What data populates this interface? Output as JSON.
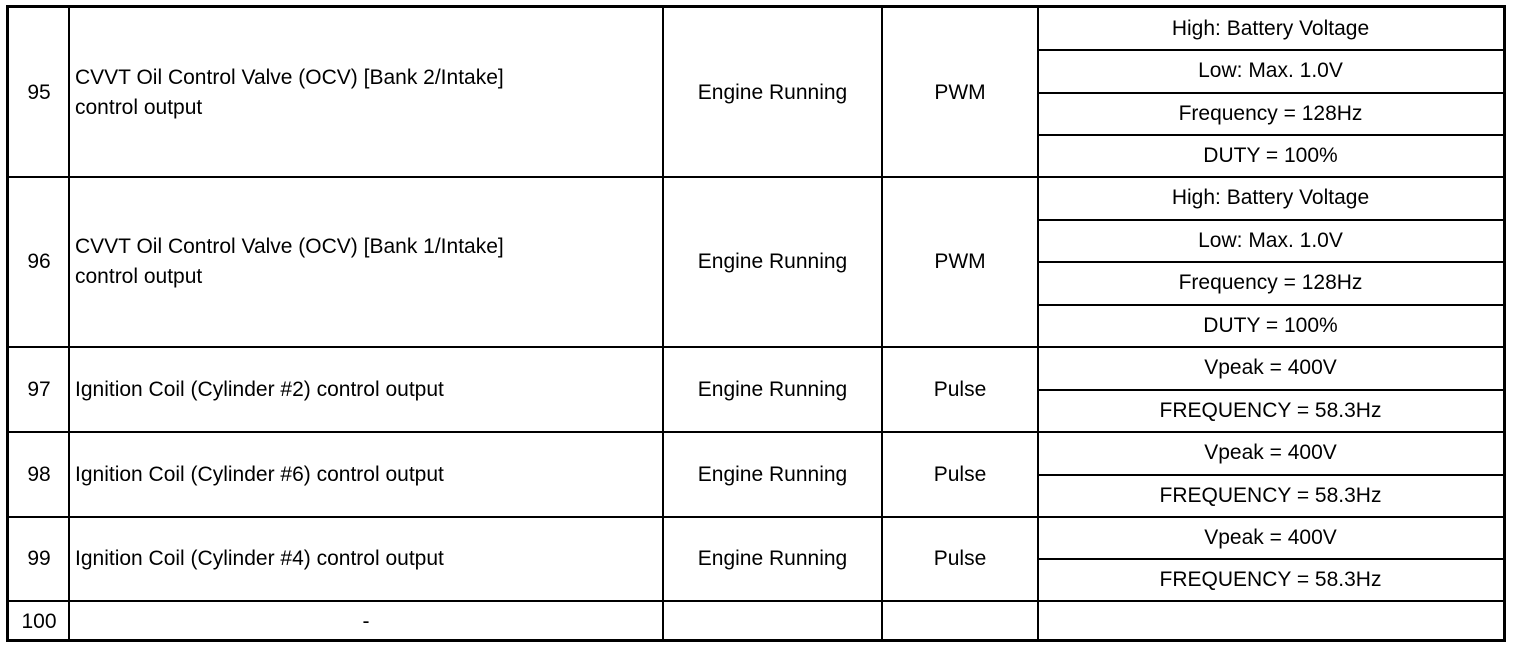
{
  "rows": [
    {
      "pin": "95",
      "description": "CVVT Oil Control Valve (OCV) [Bank 2/Intake]\ncontrol output",
      "condition": "Engine Running",
      "type": "PWM",
      "levels": [
        "High: Battery Voltage",
        "Low: Max. 1.0V",
        "Frequency = 128Hz",
        "DUTY = 100%"
      ]
    },
    {
      "pin": "96",
      "description": "CVVT Oil Control Valve (OCV) [Bank 1/Intake]\ncontrol output",
      "condition": "Engine Running",
      "type": "PWM",
      "levels": [
        "High: Battery Voltage",
        "Low: Max. 1.0V",
        "Frequency = 128Hz",
        "DUTY = 100%"
      ]
    },
    {
      "pin": "97",
      "description": "Ignition Coil (Cylinder #2) control output",
      "condition": "Engine Running",
      "type": "Pulse",
      "levels": [
        "Vpeak = 400V",
        "FREQUENCY = 58.3Hz"
      ]
    },
    {
      "pin": "98",
      "description": "Ignition Coil (Cylinder #6) control output",
      "condition": "Engine Running",
      "type": "Pulse",
      "levels": [
        "Vpeak = 400V",
        "FREQUENCY = 58.3Hz"
      ]
    },
    {
      "pin": "99",
      "description": "Ignition Coil (Cylinder #4) control output",
      "condition": "Engine Running",
      "type": "Pulse",
      "levels": [
        "Vpeak = 400V",
        "FREQUENCY = 58.3Hz"
      ]
    },
    {
      "pin": "100",
      "description": "-",
      "condition": "",
      "type": "",
      "levels": [
        ""
      ]
    }
  ]
}
